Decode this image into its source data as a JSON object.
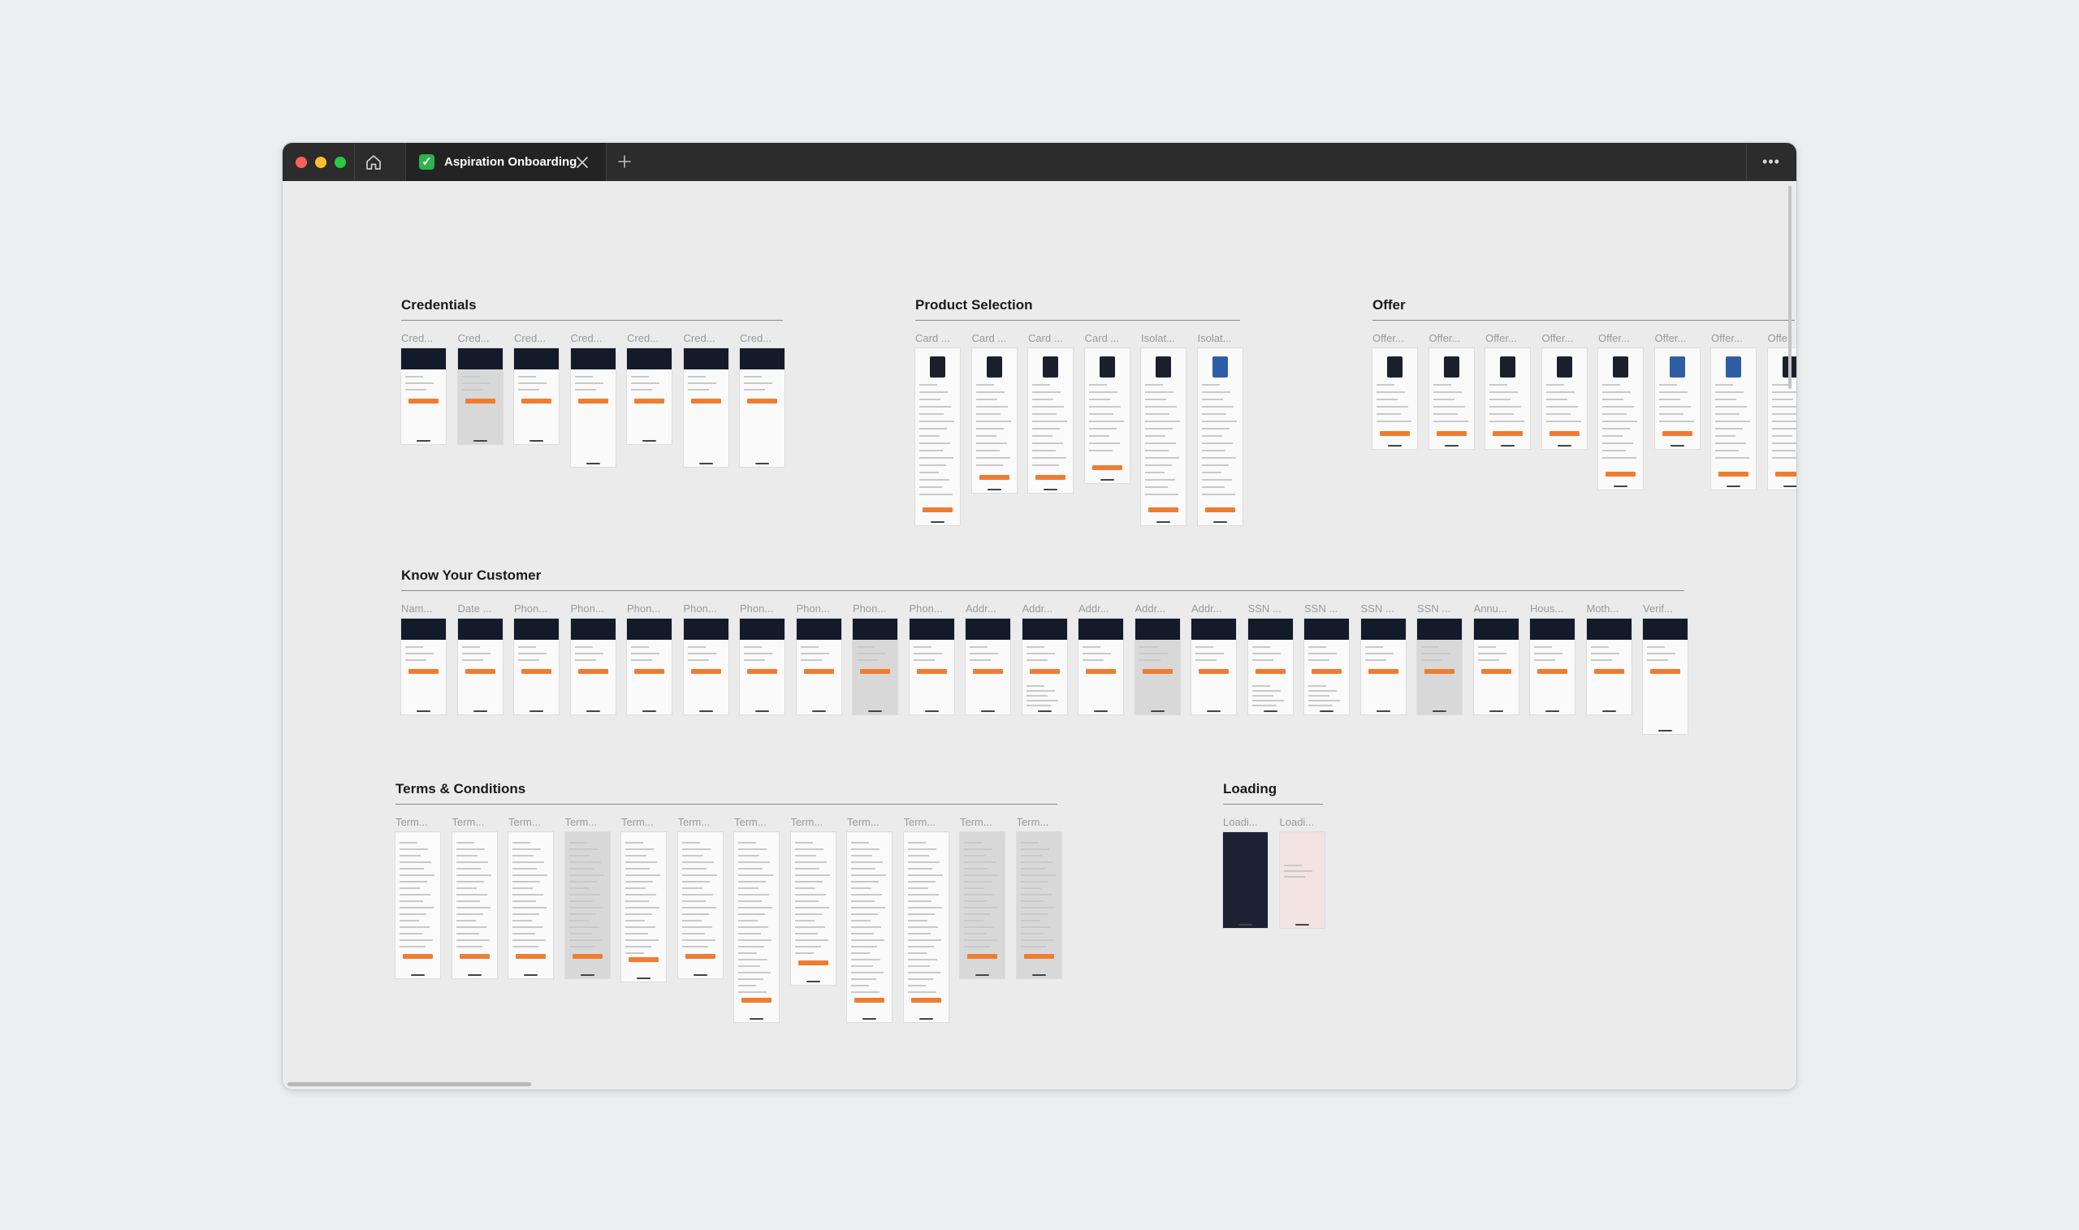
{
  "window": {
    "tab_title": "Aspiration Onboarding",
    "tab_icon": "check-mark-icon"
  },
  "colors": {
    "titlebar": "#2c2c2c",
    "canvas": "#ebebeb",
    "accent_button": "#f07c30",
    "tab_icon": "#2fb24c"
  },
  "sections": [
    {
      "id": "credentials",
      "title": "Credentials",
      "frames": [
        {
          "label": "Cred...",
          "style": "dark-header"
        },
        {
          "label": "Cred...",
          "style": "modal"
        },
        {
          "label": "Cred...",
          "style": "dark-header"
        },
        {
          "label": "Cred...",
          "style": "dark-header"
        },
        {
          "label": "Cred...",
          "style": "dark-header"
        },
        {
          "label": "Cred...",
          "style": "dark-header"
        },
        {
          "label": "Cred...",
          "style": "dark-header"
        }
      ]
    },
    {
      "id": "product-selection",
      "title": "Product Selection",
      "frames": [
        {
          "label": "Card ...",
          "style": "card-select"
        },
        {
          "label": "Card ...",
          "style": "card-select"
        },
        {
          "label": "Card ...",
          "style": "card-select"
        },
        {
          "label": "Card ...",
          "style": "card-select"
        },
        {
          "label": "Isolat...",
          "style": "card-select"
        },
        {
          "label": "Isolat...",
          "style": "card-select"
        }
      ]
    },
    {
      "id": "offer",
      "title": "Offer",
      "frames": [
        {
          "label": "Offer...",
          "style": "offer"
        },
        {
          "label": "Offer...",
          "style": "offer"
        },
        {
          "label": "Offer...",
          "style": "offer"
        },
        {
          "label": "Offer...",
          "style": "offer"
        },
        {
          "label": "Offer...",
          "style": "offer"
        },
        {
          "label": "Offer...",
          "style": "offer"
        },
        {
          "label": "Offer...",
          "style": "offer"
        },
        {
          "label": "Offe",
          "style": "offer"
        }
      ]
    },
    {
      "id": "know-your-customer",
      "title": "Know Your Customer",
      "frames": [
        {
          "label": "Nam...",
          "style": "dark-header"
        },
        {
          "label": "Date ...",
          "style": "dark-header"
        },
        {
          "label": "Phon...",
          "style": "dark-header"
        },
        {
          "label": "Phon...",
          "style": "dark-header"
        },
        {
          "label": "Phon...",
          "style": "dark-header"
        },
        {
          "label": "Phon...",
          "style": "dark-header"
        },
        {
          "label": "Phon...",
          "style": "dark-header"
        },
        {
          "label": "Phon...",
          "style": "dark-header"
        },
        {
          "label": "Phon...",
          "style": "modal"
        },
        {
          "label": "Phon...",
          "style": "dark-header"
        },
        {
          "label": "Addr...",
          "style": "dark-header"
        },
        {
          "label": "Addr...",
          "style": "keyboard"
        },
        {
          "label": "Addr...",
          "style": "dark-header"
        },
        {
          "label": "Addr...",
          "style": "modal"
        },
        {
          "label": "Addr...",
          "style": "dark-header"
        },
        {
          "label": "SSN ...",
          "style": "keyboard"
        },
        {
          "label": "SSN ...",
          "style": "keyboard"
        },
        {
          "label": "SSN ...",
          "style": "dark-header"
        },
        {
          "label": "SSN ...",
          "style": "modal"
        },
        {
          "label": "Annu...",
          "style": "dark-header"
        },
        {
          "label": "Hous...",
          "style": "dark-header"
        },
        {
          "label": "Moth...",
          "style": "dark-header"
        },
        {
          "label": "Verif...",
          "style": "dark-header"
        }
      ]
    },
    {
      "id": "terms-conditions",
      "title": "Terms & Conditions",
      "frames": [
        {
          "label": "Term...",
          "style": "terms"
        },
        {
          "label": "Term...",
          "style": "terms"
        },
        {
          "label": "Term...",
          "style": "terms"
        },
        {
          "label": "Term...",
          "style": "terms-gray"
        },
        {
          "label": "Term...",
          "style": "terms"
        },
        {
          "label": "Term...",
          "style": "terms"
        },
        {
          "label": "Term...",
          "style": "terms"
        },
        {
          "label": "Term...",
          "style": "terms"
        },
        {
          "label": "Term...",
          "style": "terms"
        },
        {
          "label": "Term...",
          "style": "terms"
        },
        {
          "label": "Term...",
          "style": "terms-gray"
        },
        {
          "label": "Term...",
          "style": "terms-gray"
        }
      ]
    },
    {
      "id": "loading",
      "title": "Loading",
      "frames": [
        {
          "label": "Loadi...",
          "style": "loading-dark"
        },
        {
          "label": "Loadi...",
          "style": "loading-pink"
        }
      ]
    }
  ]
}
